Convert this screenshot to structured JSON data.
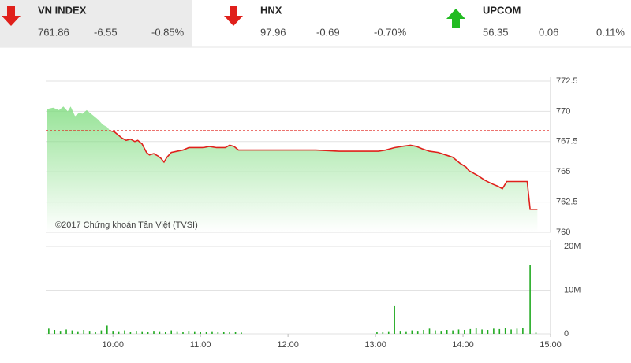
{
  "indices": [
    {
      "name": "VN INDEX",
      "value": "761.86",
      "change": "-6.55",
      "percent": "-0.85%",
      "direction": "down",
      "color": "#e0201b",
      "highlight": true
    },
    {
      "name": "HNX",
      "value": "97.96",
      "change": "-0.69",
      "percent": "-0.70%",
      "direction": "down",
      "color": "#e0201b",
      "highlight": false
    },
    {
      "name": "UPCOM",
      "value": "56.35",
      "change": "0.06",
      "percent": "0.11%",
      "direction": "up",
      "color": "#22bb22",
      "highlight": false
    }
  ],
  "chart_data": [
    {
      "type": "line",
      "annotation": "©2017 Chứng khoán Tân Việt (TVSI)",
      "color": "#e0201b",
      "fill_color": "#7ddc7d",
      "reference": 768.41,
      "reference_color": "#e0201b",
      "x": [
        555,
        559,
        563,
        566,
        569,
        571,
        574,
        577,
        579,
        582,
        585,
        587,
        590,
        593,
        596,
        598,
        601,
        604,
        606,
        609,
        612,
        615,
        617,
        620,
        623,
        625,
        628,
        631,
        633,
        635,
        637,
        640,
        644,
        648,
        652,
        658,
        662,
        666,
        671,
        677,
        680,
        683,
        686,
        696,
        712,
        739,
        755,
        782,
        787,
        793,
        798,
        804,
        808,
        812,
        817,
        823,
        828,
        833,
        838,
        842,
        844,
        850,
        855,
        860,
        864,
        867,
        870,
        879,
        884,
        886,
        891
      ],
      "values": [
        770.2,
        770.3,
        770.1,
        770.4,
        770.0,
        770.4,
        769.6,
        769.9,
        769.8,
        770.1,
        769.8,
        769.6,
        769.3,
        768.9,
        768.7,
        768.4,
        768.3,
        768.0,
        767.8,
        767.6,
        767.7,
        767.5,
        767.6,
        767.3,
        766.6,
        766.4,
        766.5,
        766.3,
        766.1,
        765.8,
        766.2,
        766.6,
        766.7,
        766.8,
        767.0,
        767.0,
        767.0,
        767.1,
        767.0,
        767.0,
        767.2,
        767.1,
        766.8,
        766.8,
        766.8,
        766.8,
        766.7,
        766.7,
        766.8,
        767.0,
        767.1,
        767.2,
        767.1,
        766.9,
        766.7,
        766.6,
        766.4,
        766.2,
        765.7,
        765.4,
        765.1,
        764.7,
        764.3,
        764.0,
        763.8,
        763.6,
        764.2,
        764.2,
        764.2,
        761.9,
        761.9
      ],
      "xlim": [
        555,
        900
      ],
      "ylim": [
        760,
        772.5
      ],
      "yticks": [
        760,
        762.5,
        765,
        767.5,
        770,
        772.5
      ],
      "grid": true
    },
    {
      "type": "bar",
      "color": "#22aa22",
      "x": [
        556,
        560,
        564,
        568,
        572,
        576,
        580,
        584,
        588,
        592,
        596,
        600,
        604,
        608,
        612,
        616,
        620,
        624,
        628,
        632,
        636,
        640,
        644,
        648,
        652,
        656,
        660,
        664,
        668,
        672,
        676,
        680,
        684,
        688,
        781,
        785,
        789,
        793,
        797,
        801,
        805,
        809,
        813,
        817,
        821,
        825,
        829,
        833,
        837,
        841,
        845,
        849,
        853,
        857,
        861,
        865,
        869,
        873,
        877,
        881,
        886,
        890
      ],
      "values": [
        1200000,
        900000,
        700000,
        1000000,
        800000,
        600000,
        900000,
        700000,
        500000,
        800000,
        1900000,
        700000,
        600000,
        800000,
        500000,
        700000,
        600000,
        500000,
        700000,
        600000,
        500000,
        800000,
        600000,
        500000,
        700000,
        600000,
        500000,
        400000,
        600000,
        500000,
        400000,
        500000,
        400000,
        300000,
        400000,
        500000,
        600000,
        6500000,
        700000,
        600000,
        800000,
        700000,
        900000,
        1200000,
        800000,
        700000,
        900000,
        800000,
        1000000,
        900000,
        1100000,
        1300000,
        1000000,
        900000,
        1200000,
        1100000,
        1300000,
        1000000,
        1200000,
        1400000,
        15700000,
        300000
      ],
      "xlim": [
        555,
        900
      ],
      "ylim": [
        0,
        20000000
      ],
      "yticks": [
        0,
        {
          "value": 10000000,
          "label": "10M"
        },
        {
          "value": 20000000,
          "label": "20M"
        }
      ],
      "xticks": [
        {
          "value": 600,
          "label": "10:00"
        },
        {
          "value": 660,
          "label": "11:00"
        },
        {
          "value": 720,
          "label": "12:00"
        },
        {
          "value": 780,
          "label": "13:00"
        },
        {
          "value": 840,
          "label": "14:00"
        },
        {
          "value": 900,
          "label": "15:00"
        }
      ],
      "grid": true
    }
  ]
}
